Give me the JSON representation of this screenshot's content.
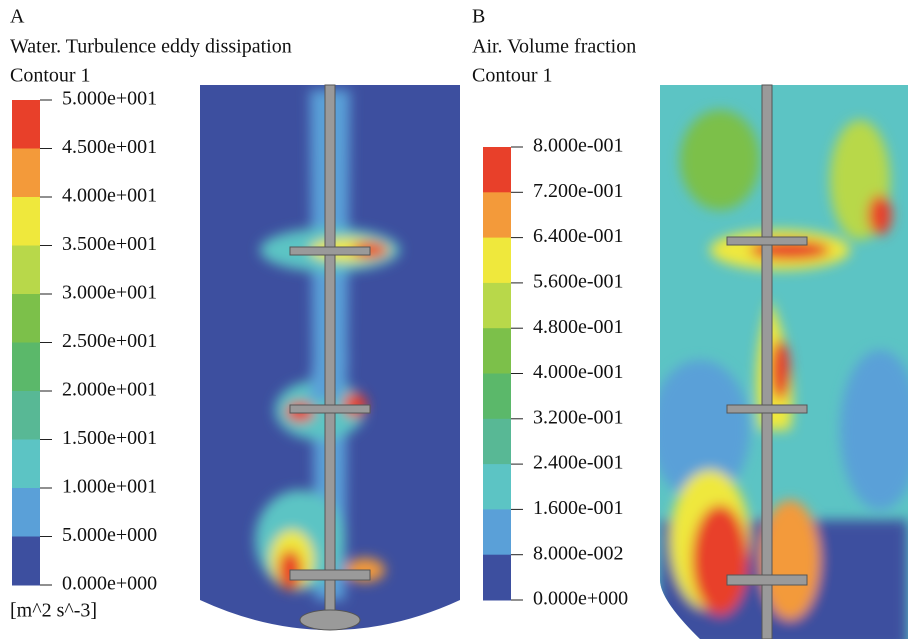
{
  "panels": [
    {
      "label": "A",
      "title": "Water. Turbulence eddy dissipation",
      "subtitle": "Contour 1",
      "scale_labels": [
        "5.000e+001",
        "4.500e+001",
        "4.000e+001",
        "3.500e+001",
        "3.000e+001",
        "2.500e+001",
        "2.000e+001",
        "1.500e+001",
        "1.000e+001",
        "5.000e+000",
        "0.000e+000"
      ],
      "unit": "[m^2 s^-3]"
    },
    {
      "label": "B",
      "title": "Air. Volume fraction",
      "subtitle": "Contour 1",
      "scale_labels": [
        "8.000e-001",
        "7.200e-001",
        "6.400e-001",
        "5.600e-001",
        "4.800e-001",
        "4.000e-001",
        "3.200e-001",
        "2.400e-001",
        "1.600e-001",
        "8.000e-002",
        "0.000e+000"
      ]
    }
  ]
}
